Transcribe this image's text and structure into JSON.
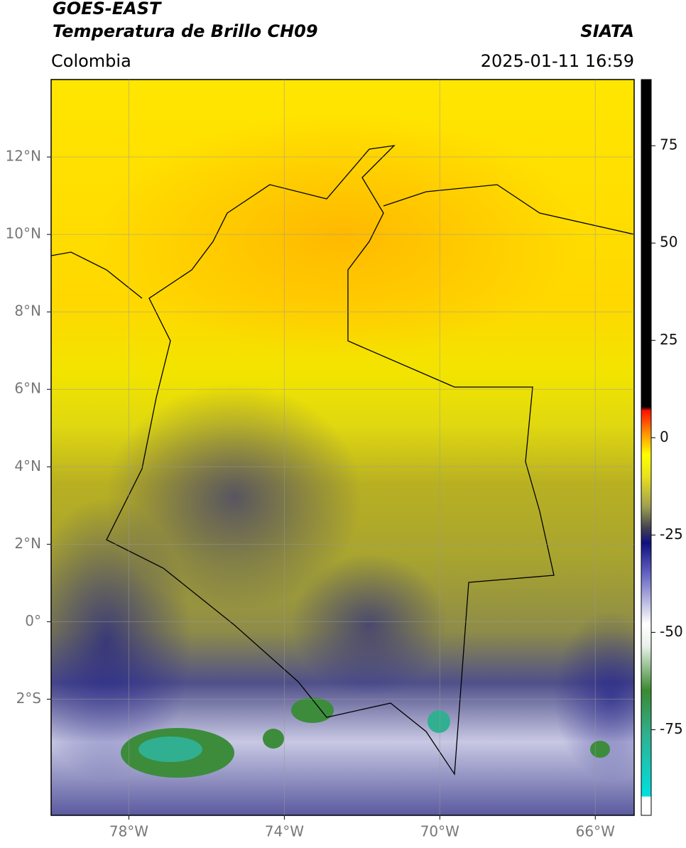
{
  "header": {
    "title": "GOES-EAST",
    "subtitle": "Temperatura de Brillo CH09",
    "source": "SIATA",
    "region": "Colombia",
    "datetime": "2025-01-11 16:59"
  },
  "map": {
    "xlim": [
      -80,
      -65
    ],
    "ylim": [
      -5,
      14
    ],
    "xticks": [
      {
        "value": -78,
        "label": "78°W"
      },
      {
        "value": -74,
        "label": "74°W"
      },
      {
        "value": -70,
        "label": "70°W"
      },
      {
        "value": -66,
        "label": "66°W"
      }
    ],
    "yticks": [
      {
        "value": 12,
        "label": "12°N"
      },
      {
        "value": 10,
        "label": "10°N"
      },
      {
        "value": 8,
        "label": "8°N"
      },
      {
        "value": 6,
        "label": "6°N"
      },
      {
        "value": 4,
        "label": "4°N"
      },
      {
        "value": 2,
        "label": "2°N"
      },
      {
        "value": 0,
        "label": "0°"
      },
      {
        "value": -2,
        "label": "2°S"
      }
    ]
  },
  "colorbar": {
    "ylim": [
      -97,
      92
    ],
    "ticks": [
      75,
      50,
      25,
      0,
      -25,
      -50,
      -75
    ]
  }
}
